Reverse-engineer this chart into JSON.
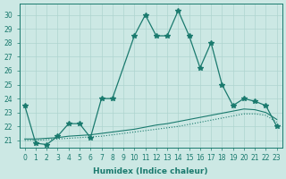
{
  "xlabel": "Humidex (Indice chaleur)",
  "background_color": "#cce8e4",
  "grid_color": "#aed4cf",
  "line_color": "#1a7a6e",
  "x_values": [
    0,
    1,
    2,
    3,
    4,
    5,
    6,
    7,
    8,
    9,
    10,
    11,
    12,
    13,
    14,
    15,
    16,
    17,
    18,
    19,
    20,
    21,
    22,
    23
  ],
  "main_x": [
    0,
    1,
    2,
    3,
    4,
    5,
    6,
    7,
    8,
    10,
    11,
    12,
    13,
    14,
    15,
    16,
    17,
    18,
    19,
    20,
    21,
    22,
    23
  ],
  "main_y": [
    23.5,
    20.8,
    20.7,
    21.3,
    22.2,
    22.2,
    21.2,
    24.0,
    24.0,
    28.5,
    30.0,
    28.5,
    28.5,
    30.3,
    28.5,
    26.2,
    28.0,
    25.0,
    23.5,
    24.0,
    23.8,
    23.5,
    22.0
  ],
  "trend_solid_x": [
    0,
    1,
    2,
    3,
    4,
    5,
    6,
    7,
    8,
    9,
    10,
    11,
    12,
    13,
    14,
    15,
    16,
    17,
    18,
    19,
    20,
    21,
    22,
    23
  ],
  "trend_solid_y": [
    21.0,
    21.0,
    21.05,
    21.1,
    21.15,
    21.2,
    21.25,
    21.3,
    21.4,
    21.5,
    21.6,
    21.7,
    21.8,
    21.9,
    22.0,
    22.15,
    22.3,
    22.45,
    22.6,
    22.75,
    22.9,
    22.9,
    22.8,
    22.3
  ],
  "trend_dotted_x": [
    0,
    1,
    2,
    3,
    4,
    5,
    6,
    7,
    8,
    9,
    10,
    11,
    12,
    13,
    14,
    15,
    16,
    17,
    18,
    19,
    20,
    21,
    22,
    23
  ],
  "trend_dotted_y": [
    21.1,
    21.1,
    21.15,
    21.2,
    21.3,
    21.35,
    21.4,
    21.5,
    21.6,
    21.7,
    21.8,
    21.95,
    22.1,
    22.2,
    22.35,
    22.5,
    22.65,
    22.8,
    22.95,
    23.1,
    23.25,
    23.2,
    23.0,
    22.5
  ],
  "ylim": [
    20.5,
    30.8
  ],
  "yticks": [
    21,
    22,
    23,
    24,
    25,
    26,
    27,
    28,
    29,
    30
  ],
  "xlim": [
    -0.5,
    23.5
  ],
  "xtick_fontsize": 5.5,
  "ytick_fontsize": 5.5,
  "xlabel_fontsize": 6.5
}
